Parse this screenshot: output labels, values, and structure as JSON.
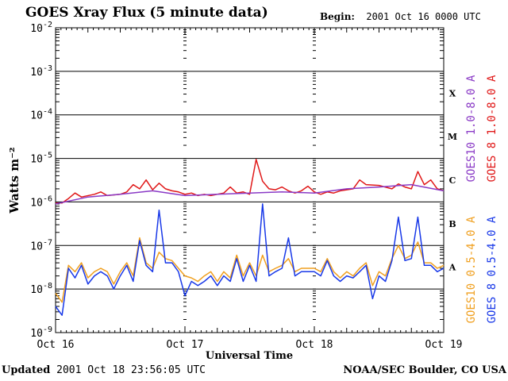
{
  "header": {
    "title": "GOES Xray Flux (5 minute data)",
    "begin_label": "Begin:",
    "begin_value": "2001 Oct 16 0000 UTC"
  },
  "footer": {
    "updated_label": "Updated",
    "updated_value": "2001 Oct 18 23:56:05 UTC",
    "credit": "NOAA/SEC Boulder, CO USA"
  },
  "colors": {
    "goes10_long": "#8a3ac6",
    "goes8_long": "#e01818",
    "goes10_short": "#f0a020",
    "goes8_short": "#1838e8"
  },
  "chart_data": {
    "type": "line",
    "title": "GOES Xray Flux (5 minute data)",
    "xlabel": "Universal Time",
    "ylabel": "Watts m⁻²",
    "y_scale": "log",
    "ylim": [
      1e-09,
      0.01
    ],
    "y_ticks": [
      {
        "exp": "-9"
      },
      {
        "exp": "-8"
      },
      {
        "exp": "-7"
      },
      {
        "exp": "-6"
      },
      {
        "exp": "-5"
      },
      {
        "exp": "-4"
      },
      {
        "exp": "-3"
      },
      {
        "exp": "-2"
      }
    ],
    "y_tick_base": "10",
    "flare_classes": [
      {
        "label": "X",
        "value": 0.0001
      },
      {
        "label": "M",
        "value": 1e-05
      },
      {
        "label": "C",
        "value": 1e-06
      },
      {
        "label": "B",
        "value": 1e-07
      },
      {
        "label": "A",
        "value": 1e-08
      }
    ],
    "x_range_days": [
      0,
      3
    ],
    "x_ticks": [
      {
        "day": 0,
        "label": "Oct 16"
      },
      {
        "day": 1,
        "label": "Oct 17"
      },
      {
        "day": 2,
        "label": "Oct 18"
      },
      {
        "day": 3,
        "label": "Oct 19"
      }
    ],
    "grid": true,
    "series": [
      {
        "name": "GOES10 1.0-8.0 A",
        "color": "#8a3ac6",
        "x_days": [
          0.0,
          0.25,
          0.5,
          0.75,
          1.0,
          1.25,
          1.5,
          1.75,
          2.0,
          2.25,
          2.5,
          2.75,
          3.0
        ],
        "values": [
          9e-07,
          1.3e-06,
          1.5e-06,
          1.8e-06,
          1.4e-06,
          1.5e-06,
          1.6e-06,
          1.7e-06,
          1.6e-06,
          2e-06,
          2.2e-06,
          2.5e-06,
          1.8e-06
        ]
      },
      {
        "name": "GOES 8 1.0-8.0 A",
        "color": "#e01818",
        "x_days": [
          0.0,
          0.05,
          0.1,
          0.15,
          0.2,
          0.3,
          0.35,
          0.4,
          0.5,
          0.55,
          0.6,
          0.65,
          0.7,
          0.75,
          0.8,
          0.85,
          0.9,
          0.95,
          1.0,
          1.05,
          1.1,
          1.15,
          1.2,
          1.3,
          1.35,
          1.4,
          1.45,
          1.5,
          1.55,
          1.6,
          1.65,
          1.7,
          1.75,
          1.8,
          1.85,
          1.9,
          1.95,
          2.0,
          2.05,
          2.1,
          2.15,
          2.2,
          2.3,
          2.35,
          2.4,
          2.5,
          2.6,
          2.65,
          2.7,
          2.75,
          2.8,
          2.85,
          2.9,
          2.95,
          3.0
        ],
        "values": [
          9.5e-07,
          9.5e-07,
          1.2e-06,
          1.6e-06,
          1.3e-06,
          1.5e-06,
          1.7e-06,
          1.4e-06,
          1.5e-06,
          1.7e-06,
          2.5e-06,
          2e-06,
          3.2e-06,
          1.9e-06,
          2.7e-06,
          2e-06,
          1.8e-06,
          1.7e-06,
          1.5e-06,
          1.6e-06,
          1.4e-06,
          1.5e-06,
          1.4e-06,
          1.6e-06,
          2.2e-06,
          1.6e-06,
          1.7e-06,
          1.5e-06,
          9.5e-06,
          3e-06,
          2e-06,
          1.9e-06,
          2.2e-06,
          1.8e-06,
          1.6e-06,
          1.8e-06,
          2.3e-06,
          1.7e-06,
          1.5e-06,
          1.7e-06,
          1.6e-06,
          1.8e-06,
          2e-06,
          3.2e-06,
          2.5e-06,
          2.4e-06,
          2e-06,
          2.6e-06,
          2.2e-06,
          2e-06,
          5e-06,
          2.5e-06,
          3.2e-06,
          2e-06,
          1.8e-06
        ]
      },
      {
        "name": "GOES10 0.5-4.0 A",
        "color": "#f0a020",
        "x_days": [
          0.0,
          0.05,
          0.1,
          0.15,
          0.2,
          0.25,
          0.3,
          0.35,
          0.4,
          0.45,
          0.5,
          0.55,
          0.6,
          0.65,
          0.7,
          0.75,
          0.8,
          0.85,
          0.9,
          0.95,
          1.0,
          1.05,
          1.1,
          1.15,
          1.2,
          1.25,
          1.3,
          1.35,
          1.4,
          1.45,
          1.5,
          1.55,
          1.6,
          1.65,
          1.7,
          1.75,
          1.8,
          1.85,
          1.9,
          1.95,
          2.0,
          2.05,
          2.1,
          2.15,
          2.2,
          2.25,
          2.3,
          2.35,
          2.4,
          2.45,
          2.5,
          2.55,
          2.6,
          2.65,
          2.7,
          2.75,
          2.8,
          2.85,
          2.9,
          2.95,
          3.0
        ],
        "values": [
          8e-09,
          5e-09,
          3.5e-08,
          2.5e-08,
          4e-08,
          1.8e-08,
          2.5e-08,
          3e-08,
          2.5e-08,
          1.3e-08,
          2.5e-08,
          4e-08,
          2e-08,
          1.5e-07,
          4e-08,
          3e-08,
          7e-08,
          5e-08,
          4.5e-08,
          3e-08,
          2e-08,
          1.8e-08,
          1.5e-08,
          2e-08,
          2.5e-08,
          1.5e-08,
          2.5e-08,
          1.8e-08,
          6e-08,
          2e-08,
          4e-08,
          2e-08,
          6e-08,
          2.5e-08,
          3e-08,
          3.5e-08,
          5e-08,
          2.5e-08,
          3e-08,
          3e-08,
          3e-08,
          2.5e-08,
          5e-08,
          2.5e-08,
          1.8e-08,
          2.5e-08,
          2e-08,
          3e-08,
          4e-08,
          1.2e-08,
          2.5e-08,
          2e-08,
          5e-08,
          1e-07,
          5e-08,
          6e-08,
          1.2e-07,
          4e-08,
          4e-08,
          3e-08,
          3.5e-08
        ]
      },
      {
        "name": "GOES 8 0.5-4.0 A",
        "color": "#1838e8",
        "x_days": [
          0.0,
          0.05,
          0.1,
          0.15,
          0.2,
          0.25,
          0.3,
          0.35,
          0.4,
          0.45,
          0.5,
          0.55,
          0.6,
          0.65,
          0.7,
          0.75,
          0.8,
          0.85,
          0.9,
          0.95,
          1.0,
          1.05,
          1.1,
          1.15,
          1.2,
          1.25,
          1.3,
          1.35,
          1.4,
          1.45,
          1.5,
          1.55,
          1.6,
          1.65,
          1.7,
          1.75,
          1.8,
          1.85,
          1.9,
          1.95,
          2.0,
          2.05,
          2.1,
          2.15,
          2.2,
          2.25,
          2.3,
          2.35,
          2.4,
          2.45,
          2.5,
          2.55,
          2.6,
          2.65,
          2.7,
          2.75,
          2.8,
          2.85,
          2.9,
          2.95,
          3.0
        ],
        "values": [
          4e-09,
          2.5e-09,
          3e-08,
          1.8e-08,
          3.5e-08,
          1.3e-08,
          2e-08,
          2.5e-08,
          2e-08,
          1e-08,
          2e-08,
          3.5e-08,
          1.5e-08,
          1.3e-07,
          3.5e-08,
          2.5e-08,
          6.5e-07,
          4e-08,
          4e-08,
          2.5e-08,
          7e-09,
          1.5e-08,
          1.2e-08,
          1.5e-08,
          2e-08,
          1.2e-08,
          2e-08,
          1.5e-08,
          5e-08,
          1.5e-08,
          3.5e-08,
          1.5e-08,
          9e-07,
          2e-08,
          2.5e-08,
          3e-08,
          1.5e-07,
          2e-08,
          2.5e-08,
          2.5e-08,
          2.5e-08,
          2e-08,
          4.5e-08,
          2e-08,
          1.5e-08,
          2e-08,
          1.8e-08,
          2.5e-08,
          3.5e-08,
          6e-09,
          2e-08,
          1.5e-08,
          4.5e-08,
          4.5e-07,
          4.5e-08,
          5e-08,
          4.5e-07,
          3.5e-08,
          3.5e-08,
          2.5e-08,
          3e-08
        ]
      }
    ]
  }
}
